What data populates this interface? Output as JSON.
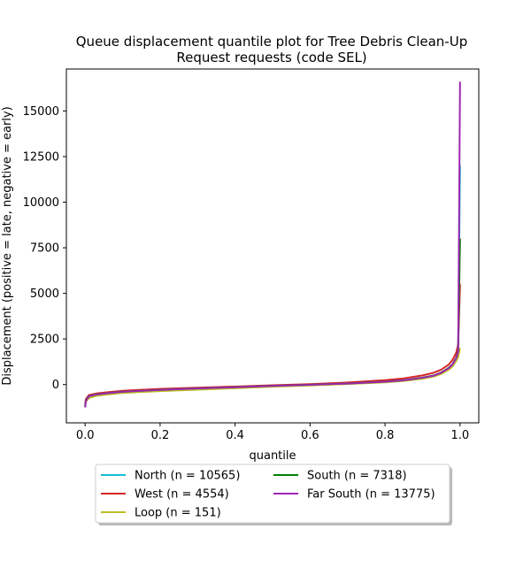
{
  "chart_data": {
    "type": "line",
    "title_line1": "Queue displacement quantile plot for Tree Debris Clean-Up",
    "title_line2": "Request  requests (code SEL)",
    "xlabel": "quantile",
    "ylabel": "Displacement (positive = late, negative = early)",
    "xlim": [
      -0.05,
      1.05
    ],
    "ylim": [
      -2100,
      17300
    ],
    "xticks": [
      0.0,
      0.2,
      0.4,
      0.6,
      0.8,
      1.0
    ],
    "xtick_labels": [
      "0.0",
      "0.2",
      "0.4",
      "0.6",
      "0.8",
      "1.0"
    ],
    "yticks": [
      0,
      2500,
      5000,
      7500,
      10000,
      12500,
      15000
    ],
    "ytick_labels": [
      "0",
      "2500",
      "5000",
      "7500",
      "10000",
      "12500",
      "15000"
    ],
    "grid": false,
    "legend_position": "below",
    "series": [
      {
        "name": "North (n = 10565)",
        "color": "#17becf",
        "x": [
          0.0,
          0.002,
          0.01,
          0.03,
          0.06,
          0.1,
          0.15,
          0.2,
          0.3,
          0.4,
          0.5,
          0.6,
          0.7,
          0.8,
          0.85,
          0.9,
          0.93,
          0.95,
          0.97,
          0.98,
          0.99,
          0.995,
          1.0
        ],
        "y": [
          -1250,
          -900,
          -650,
          -550,
          -480,
          -400,
          -350,
          -300,
          -220,
          -150,
          -80,
          -20,
          50,
          150,
          230,
          370,
          490,
          650,
          900,
          1100,
          1450,
          1800,
          12000
        ]
      },
      {
        "name": "West (n = 4554)",
        "color": "#d62728",
        "x": [
          0.0,
          0.002,
          0.01,
          0.03,
          0.06,
          0.1,
          0.15,
          0.2,
          0.3,
          0.4,
          0.5,
          0.6,
          0.7,
          0.8,
          0.85,
          0.9,
          0.93,
          0.95,
          0.97,
          0.98,
          0.99,
          0.995,
          1.0
        ],
        "y": [
          -1100,
          -800,
          -580,
          -490,
          -420,
          -340,
          -290,
          -240,
          -170,
          -110,
          -40,
          20,
          110,
          240,
          340,
          500,
          650,
          820,
          1100,
          1350,
          1750,
          2200,
          5500
        ]
      },
      {
        "name": "Loop (n = 151)",
        "color": "#bcbd22",
        "x": [
          0.0,
          0.002,
          0.01,
          0.03,
          0.06,
          0.1,
          0.15,
          0.2,
          0.3,
          0.4,
          0.5,
          0.6,
          0.7,
          0.8,
          0.85,
          0.9,
          0.93,
          0.95,
          0.97,
          0.98,
          0.99,
          0.995,
          1.0
        ],
        "y": [
          -1200,
          -950,
          -750,
          -620,
          -540,
          -460,
          -410,
          -360,
          -280,
          -200,
          -120,
          -50,
          30,
          120,
          200,
          320,
          440,
          580,
          820,
          1000,
          1300,
          1500,
          2000
        ]
      },
      {
        "name": "South (n = 7318)",
        "color": "#008000",
        "x": [
          0.0,
          0.002,
          0.01,
          0.03,
          0.06,
          0.1,
          0.15,
          0.2,
          0.3,
          0.4,
          0.5,
          0.6,
          0.7,
          0.8,
          0.85,
          0.9,
          0.93,
          0.95,
          0.97,
          0.98,
          0.99,
          0.995,
          1.0
        ],
        "y": [
          -1200,
          -870,
          -630,
          -540,
          -470,
          -390,
          -340,
          -290,
          -210,
          -140,
          -70,
          -10,
          60,
          160,
          240,
          380,
          500,
          660,
          920,
          1120,
          1480,
          1850,
          8000
        ]
      },
      {
        "name": "Far South (n = 13775)",
        "color": "#9c27b0",
        "x": [
          0.0,
          0.002,
          0.01,
          0.03,
          0.06,
          0.1,
          0.15,
          0.2,
          0.3,
          0.4,
          0.5,
          0.6,
          0.7,
          0.8,
          0.85,
          0.9,
          0.93,
          0.95,
          0.97,
          0.98,
          0.99,
          0.995,
          1.0
        ],
        "y": [
          -1250,
          -900,
          -640,
          -545,
          -475,
          -395,
          -345,
          -295,
          -215,
          -145,
          -75,
          -15,
          55,
          155,
          235,
          370,
          490,
          650,
          900,
          1100,
          1450,
          1800,
          16600
        ]
      }
    ]
  }
}
